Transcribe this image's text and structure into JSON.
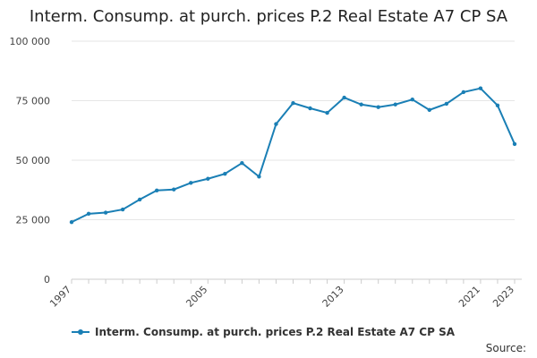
{
  "chart_data": {
    "type": "line",
    "title": "Interm. Consump. at purch. prices P.2 Real Estate A7 CP SA",
    "x": [
      1997,
      1998,
      1999,
      2000,
      2001,
      2002,
      2003,
      2004,
      2005,
      2006,
      2007,
      2008,
      2009,
      2010,
      2011,
      2012,
      2013,
      2014,
      2015,
      2016,
      2017,
      2018,
      2019,
      2020,
      2021,
      2022,
      2023
    ],
    "series": [
      {
        "name": "Interm. Consump. at purch. prices P.2 Real Estate A7 CP SA",
        "values": [
          24000,
          27500,
          28000,
          29300,
          33500,
          37300,
          37700,
          40500,
          42200,
          44300,
          48800,
          43100,
          65200,
          74000,
          71800,
          69900,
          76300,
          73400,
          72300,
          73400,
          75500,
          71100,
          73700,
          78600,
          80200,
          73000,
          56800
        ]
      }
    ],
    "color": "#1a7fb5",
    "xlim": [
      1997,
      2023
    ],
    "ylim": [
      0,
      100000
    ],
    "y_ticks": [
      0,
      25000,
      50000,
      75000,
      100000
    ],
    "y_tick_labels": [
      "0",
      "25 000",
      "50 000",
      "75 000",
      "100 000"
    ],
    "x_tick_labels": [
      1997,
      2005,
      2013,
      2021,
      2023
    ],
    "grid": true,
    "legend": "bottom-left",
    "source_label": "Source:"
  }
}
